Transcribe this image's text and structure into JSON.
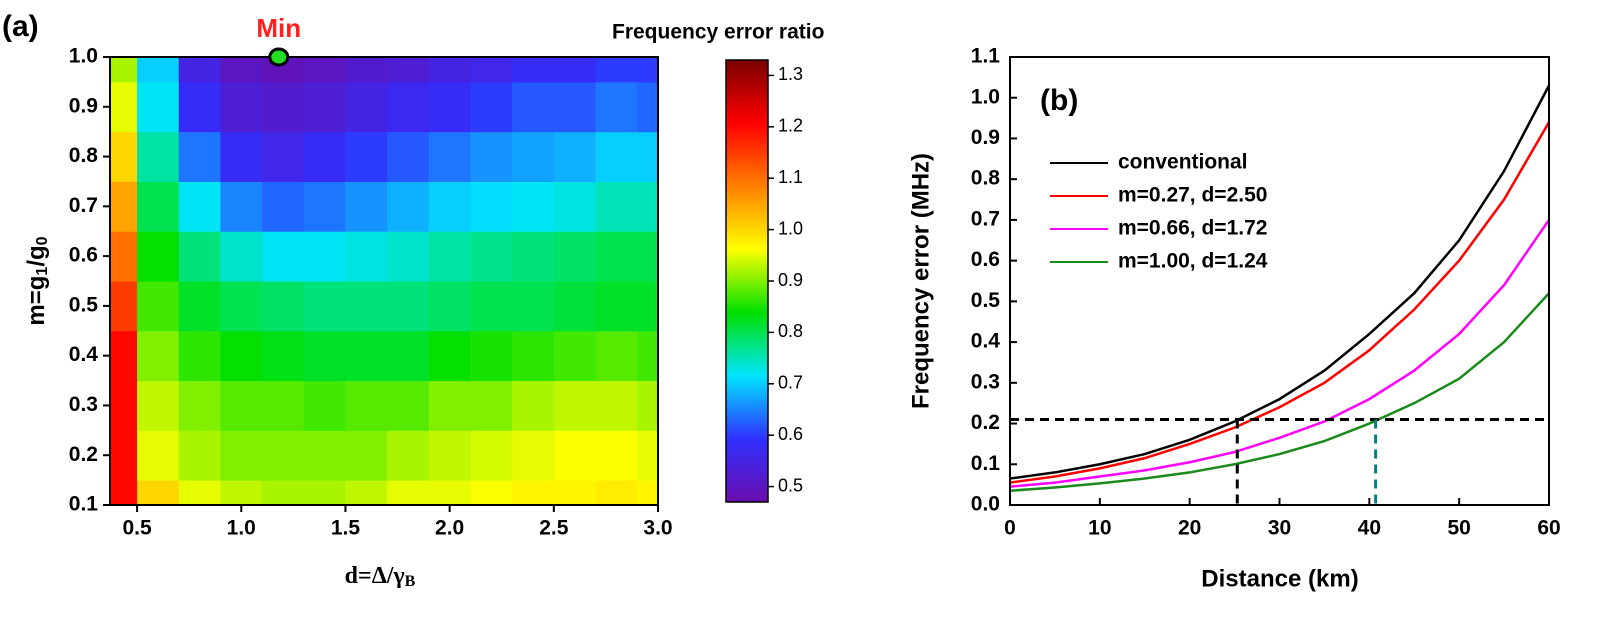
{
  "chart_data": [
    {
      "type": "heatmap",
      "panel_label": "(a)",
      "colorbar_title": "Frequency error ratio",
      "x_label_parts": [
        "d=Δ/γ",
        "B"
      ],
      "y_label_parts": [
        "m=g",
        "1",
        "/g",
        "0"
      ],
      "x": [
        0.4,
        0.6,
        0.8,
        1.0,
        1.2,
        1.4,
        1.6,
        1.8,
        2.0,
        2.2,
        2.4,
        2.6,
        2.8,
        3.0
      ],
      "y": [
        0.1,
        0.2,
        0.3,
        0.4,
        0.5,
        0.6,
        0.7,
        0.8,
        0.9,
        1.0
      ],
      "z": [
        [
          1.2,
          1.0,
          0.95,
          0.93,
          0.92,
          0.92,
          0.93,
          0.95,
          0.95,
          0.96,
          0.97,
          0.97,
          0.98,
          0.97
        ],
        [
          1.2,
          0.95,
          0.92,
          0.9,
          0.9,
          0.9,
          0.9,
          0.92,
          0.93,
          0.94,
          0.95,
          0.96,
          0.96,
          0.95
        ],
        [
          1.2,
          0.93,
          0.9,
          0.88,
          0.88,
          0.87,
          0.88,
          0.88,
          0.9,
          0.9,
          0.92,
          0.93,
          0.93,
          0.92
        ],
        [
          1.2,
          0.9,
          0.86,
          0.84,
          0.83,
          0.82,
          0.82,
          0.82,
          0.84,
          0.85,
          0.86,
          0.87,
          0.88,
          0.87
        ],
        [
          1.15,
          0.87,
          0.82,
          0.8,
          0.79,
          0.78,
          0.78,
          0.78,
          0.79,
          0.8,
          0.8,
          0.81,
          0.82,
          0.82
        ],
        [
          1.1,
          0.84,
          0.78,
          0.74,
          0.72,
          0.72,
          0.73,
          0.74,
          0.76,
          0.77,
          0.78,
          0.79,
          0.8,
          0.8
        ],
        [
          1.05,
          0.8,
          0.72,
          0.65,
          0.63,
          0.64,
          0.66,
          0.68,
          0.7,
          0.71,
          0.72,
          0.73,
          0.75,
          0.75
        ],
        [
          1.0,
          0.76,
          0.64,
          0.58,
          0.56,
          0.58,
          0.6,
          0.62,
          0.64,
          0.66,
          0.67,
          0.68,
          0.7,
          0.7
        ],
        [
          0.95,
          0.72,
          0.58,
          0.53,
          0.52,
          0.53,
          0.55,
          0.57,
          0.58,
          0.6,
          0.62,
          0.62,
          0.64,
          0.63
        ],
        [
          0.92,
          0.7,
          0.55,
          0.5,
          0.49,
          0.5,
          0.52,
          0.53,
          0.55,
          0.56,
          0.58,
          0.58,
          0.6,
          0.6
        ]
      ],
      "xlim": [
        0.37,
        3.0
      ],
      "xticks": [
        0.5,
        {
          "value": 1,
          "label": "1.0"
        },
        1.5,
        {
          "value": 2,
          "label": "2.0"
        },
        2.5,
        {
          "value": 3,
          "label": "3.0"
        }
      ],
      "ylim": [
        0.1,
        1.0
      ],
      "yticks": [
        0.1,
        0.2,
        0.3,
        0.4,
        0.5,
        0.6,
        0.7,
        0.8,
        0.9,
        {
          "value": 1,
          "label": "1.0"
        }
      ],
      "clim": [
        0.47,
        1.33
      ],
      "cticks": [
        0.5,
        0.6,
        0.7,
        0.8,
        0.9,
        {
          "value": 1,
          "label": "1.0"
        },
        1.1,
        1.2,
        1.3
      ],
      "colormap": [
        "#6a0dad",
        "#3030ff",
        "#00e5ff",
        "#00e000",
        "#ffff00",
        "#ff8000",
        "#ff0000",
        "#7a0000"
      ],
      "min_point": {
        "x": 1.18,
        "y": 1.0,
        "label": "Min",
        "color": "#22dd22",
        "label_color": "#ff2020"
      }
    },
    {
      "type": "line",
      "panel_label": "(b)",
      "x_label": "Distance (km)",
      "y_label": "Frequency error (MHz)",
      "x": [
        0,
        5,
        10,
        15,
        20,
        25,
        30,
        35,
        40,
        45,
        50,
        55,
        60
      ],
      "series": [
        {
          "name": "conventional",
          "color": "#000000",
          "values": [
            0.065,
            0.08,
            0.1,
            0.125,
            0.16,
            0.205,
            0.26,
            0.33,
            0.42,
            0.52,
            0.65,
            0.82,
            1.03
          ]
        },
        {
          "name": "m=0.27, d=2.50",
          "color": "#ff0000",
          "values": [
            0.055,
            0.07,
            0.09,
            0.115,
            0.15,
            0.19,
            0.24,
            0.3,
            0.38,
            0.48,
            0.6,
            0.75,
            0.94
          ]
        },
        {
          "name": "m=0.66, d=1.72",
          "color": "#ff00ff",
          "values": [
            0.045,
            0.055,
            0.07,
            0.085,
            0.105,
            0.13,
            0.165,
            0.205,
            0.26,
            0.33,
            0.42,
            0.54,
            0.7
          ]
        },
        {
          "name": "m=1.00, d=1.24",
          "color": "#1a8a1a",
          "values": [
            0.035,
            0.043,
            0.053,
            0.065,
            0.08,
            0.1,
            0.125,
            0.157,
            0.2,
            0.25,
            0.31,
            0.4,
            0.52
          ]
        }
      ],
      "xlim": [
        0,
        60
      ],
      "xticks": [
        0,
        10,
        20,
        30,
        40,
        50,
        60
      ],
      "ylim": [
        0,
        1.1
      ],
      "yticks": [
        {
          "value": 0,
          "label": "0.0"
        },
        0.1,
        0.2,
        0.3,
        0.4,
        0.5,
        0.6,
        0.7,
        0.8,
        0.9,
        {
          "value": 1,
          "label": "1.0"
        },
        1.1
      ],
      "threshold": {
        "y": 0.21,
        "color": "#000000"
      },
      "markers": [
        {
          "x": 25.3,
          "color": "#000000"
        },
        {
          "x": 40.7,
          "color": "#008080"
        }
      ]
    }
  ]
}
